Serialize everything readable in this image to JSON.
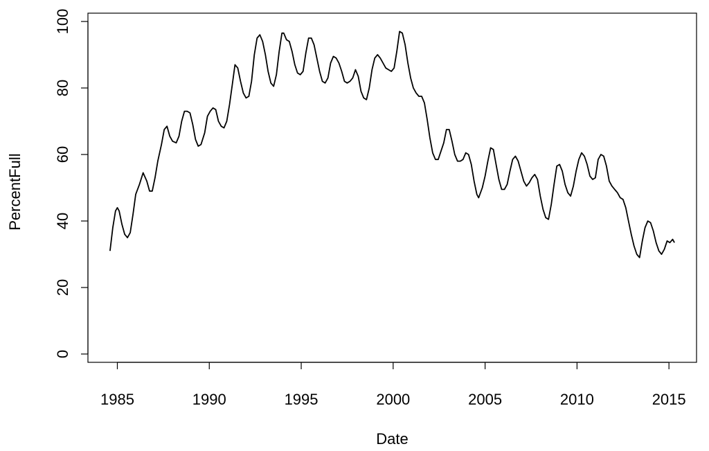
{
  "chart_data": {
    "type": "line",
    "title": "",
    "xlabel": "Date",
    "ylabel": "PercentFull",
    "xlim": [
      1983.4,
      2016.5
    ],
    "ylim": [
      -2.5,
      102.5
    ],
    "x_ticks": [
      1985,
      1990,
      1995,
      2000,
      2005,
      2010,
      2015
    ],
    "y_ticks": [
      0,
      20,
      40,
      60,
      80,
      100
    ],
    "grid": false,
    "legend": "none",
    "series": [
      {
        "color": "#000000",
        "points": [
          [
            1984.6,
            31
          ],
          [
            1984.75,
            38
          ],
          [
            1984.9,
            43
          ],
          [
            1985.0,
            44
          ],
          [
            1985.1,
            43
          ],
          [
            1985.25,
            39
          ],
          [
            1985.4,
            36
          ],
          [
            1985.55,
            35
          ],
          [
            1985.7,
            36.5
          ],
          [
            1985.85,
            42
          ],
          [
            1986.0,
            48
          ],
          [
            1986.2,
            51
          ],
          [
            1986.4,
            54.5
          ],
          [
            1986.6,
            52
          ],
          [
            1986.75,
            49
          ],
          [
            1986.9,
            49
          ],
          [
            1987.05,
            53
          ],
          [
            1987.2,
            58
          ],
          [
            1987.4,
            63
          ],
          [
            1987.55,
            67.5
          ],
          [
            1987.7,
            68.5
          ],
          [
            1987.85,
            65.5
          ],
          [
            1988.0,
            64
          ],
          [
            1988.2,
            63.5
          ],
          [
            1988.35,
            65.5
          ],
          [
            1988.5,
            70
          ],
          [
            1988.65,
            73
          ],
          [
            1988.8,
            73
          ],
          [
            1988.95,
            72.5
          ],
          [
            1989.1,
            69
          ],
          [
            1989.25,
            64.5
          ],
          [
            1989.4,
            62.5
          ],
          [
            1989.55,
            63
          ],
          [
            1989.75,
            66.5
          ],
          [
            1989.9,
            71.5
          ],
          [
            1990.05,
            73
          ],
          [
            1990.2,
            74
          ],
          [
            1990.35,
            73.5
          ],
          [
            1990.5,
            70
          ],
          [
            1990.65,
            68.5
          ],
          [
            1990.8,
            68
          ],
          [
            1990.95,
            70
          ],
          [
            1991.1,
            75
          ],
          [
            1991.25,
            81
          ],
          [
            1991.4,
            87
          ],
          [
            1991.55,
            86
          ],
          [
            1991.7,
            82
          ],
          [
            1991.85,
            78.5
          ],
          [
            1992.0,
            77
          ],
          [
            1992.15,
            77.5
          ],
          [
            1992.3,
            82
          ],
          [
            1992.45,
            90
          ],
          [
            1992.6,
            95
          ],
          [
            1992.75,
            96
          ],
          [
            1992.9,
            94
          ],
          [
            1993.05,
            90
          ],
          [
            1993.2,
            85
          ],
          [
            1993.35,
            81.5
          ],
          [
            1993.5,
            80.5
          ],
          [
            1993.65,
            84
          ],
          [
            1993.8,
            91
          ],
          [
            1993.95,
            96.5
          ],
          [
            1994.05,
            96.5
          ],
          [
            1994.2,
            94.5
          ],
          [
            1994.35,
            94
          ],
          [
            1994.5,
            91
          ],
          [
            1994.65,
            87
          ],
          [
            1994.8,
            84.5
          ],
          [
            1994.95,
            84
          ],
          [
            1995.1,
            85
          ],
          [
            1995.25,
            90.5
          ],
          [
            1995.4,
            95
          ],
          [
            1995.55,
            95
          ],
          [
            1995.7,
            93
          ],
          [
            1995.85,
            89
          ],
          [
            1996.0,
            85
          ],
          [
            1996.15,
            82
          ],
          [
            1996.3,
            81.5
          ],
          [
            1996.45,
            83
          ],
          [
            1996.6,
            87.5
          ],
          [
            1996.75,
            89.5
          ],
          [
            1996.9,
            89
          ],
          [
            1997.05,
            87.5
          ],
          [
            1997.2,
            85
          ],
          [
            1997.35,
            82
          ],
          [
            1997.5,
            81.5
          ],
          [
            1997.65,
            82
          ],
          [
            1997.8,
            83
          ],
          [
            1997.95,
            85.5
          ],
          [
            1998.1,
            83.5
          ],
          [
            1998.25,
            79
          ],
          [
            1998.4,
            77
          ],
          [
            1998.55,
            76.5
          ],
          [
            1998.7,
            80
          ],
          [
            1998.85,
            85.5
          ],
          [
            1999.0,
            89
          ],
          [
            1999.15,
            90
          ],
          [
            1999.3,
            89
          ],
          [
            1999.45,
            87.5
          ],
          [
            1999.6,
            86
          ],
          [
            1999.75,
            85.5
          ],
          [
            1999.9,
            85
          ],
          [
            2000.05,
            86
          ],
          [
            2000.2,
            91
          ],
          [
            2000.35,
            97
          ],
          [
            2000.5,
            96.5
          ],
          [
            2000.65,
            93
          ],
          [
            2000.8,
            87.5
          ],
          [
            2000.95,
            83
          ],
          [
            2001.1,
            80
          ],
          [
            2001.25,
            78.5
          ],
          [
            2001.4,
            77.5
          ],
          [
            2001.55,
            77.5
          ],
          [
            2001.7,
            75.5
          ],
          [
            2001.85,
            70.5
          ],
          [
            2002.0,
            65
          ],
          [
            2002.15,
            60.5
          ],
          [
            2002.3,
            58.5
          ],
          [
            2002.45,
            58.5
          ],
          [
            2002.6,
            61
          ],
          [
            2002.75,
            63.5
          ],
          [
            2002.9,
            67.5
          ],
          [
            2003.05,
            67.5
          ],
          [
            2003.2,
            64
          ],
          [
            2003.35,
            60
          ],
          [
            2003.5,
            58
          ],
          [
            2003.65,
            58
          ],
          [
            2003.8,
            58.5
          ],
          [
            2003.95,
            60.5
          ],
          [
            2004.1,
            60
          ],
          [
            2004.25,
            57
          ],
          [
            2004.4,
            52
          ],
          [
            2004.55,
            48
          ],
          [
            2004.65,
            47
          ],
          [
            2004.85,
            50
          ],
          [
            2005.0,
            53.5
          ],
          [
            2005.15,
            58
          ],
          [
            2005.3,
            62
          ],
          [
            2005.45,
            61.5
          ],
          [
            2005.6,
            57
          ],
          [
            2005.75,
            52.5
          ],
          [
            2005.9,
            49.5
          ],
          [
            2006.05,
            49.5
          ],
          [
            2006.2,
            51
          ],
          [
            2006.35,
            55
          ],
          [
            2006.5,
            58.5
          ],
          [
            2006.65,
            59.5
          ],
          [
            2006.8,
            58
          ],
          [
            2006.95,
            55
          ],
          [
            2007.1,
            52
          ],
          [
            2007.25,
            50.5
          ],
          [
            2007.4,
            51.5
          ],
          [
            2007.55,
            53
          ],
          [
            2007.7,
            54
          ],
          [
            2007.85,
            52.5
          ],
          [
            2008.0,
            47.5
          ],
          [
            2008.15,
            43.5
          ],
          [
            2008.3,
            41
          ],
          [
            2008.45,
            40.5
          ],
          [
            2008.6,
            45
          ],
          [
            2008.75,
            51
          ],
          [
            2008.9,
            56.5
          ],
          [
            2009.05,
            57
          ],
          [
            2009.2,
            55
          ],
          [
            2009.35,
            51
          ],
          [
            2009.5,
            48.5
          ],
          [
            2009.65,
            47.5
          ],
          [
            2009.8,
            50.5
          ],
          [
            2009.95,
            55
          ],
          [
            2010.1,
            58.5
          ],
          [
            2010.25,
            60.5
          ],
          [
            2010.4,
            59.5
          ],
          [
            2010.55,
            57
          ],
          [
            2010.7,
            53.5
          ],
          [
            2010.85,
            52.5
          ],
          [
            2011.0,
            53
          ],
          [
            2011.15,
            58.5
          ],
          [
            2011.3,
            60
          ],
          [
            2011.45,
            59.5
          ],
          [
            2011.6,
            56.5
          ],
          [
            2011.75,
            52
          ],
          [
            2011.9,
            50.5
          ],
          [
            2012.05,
            49.5
          ],
          [
            2012.2,
            48.5
          ],
          [
            2012.35,
            47
          ],
          [
            2012.5,
            46.5
          ],
          [
            2012.65,
            44
          ],
          [
            2012.8,
            40
          ],
          [
            2012.95,
            36
          ],
          [
            2013.1,
            32.5
          ],
          [
            2013.25,
            30
          ],
          [
            2013.4,
            29
          ],
          [
            2013.55,
            34
          ],
          [
            2013.7,
            38
          ],
          [
            2013.85,
            40
          ],
          [
            2014.0,
            39.5
          ],
          [
            2014.15,
            37
          ],
          [
            2014.3,
            33.5
          ],
          [
            2014.45,
            31
          ],
          [
            2014.6,
            30
          ],
          [
            2014.75,
            31.5
          ],
          [
            2014.9,
            34
          ],
          [
            2015.05,
            33.5
          ],
          [
            2015.2,
            34.5
          ],
          [
            2015.3,
            33.5
          ]
        ]
      }
    ]
  }
}
